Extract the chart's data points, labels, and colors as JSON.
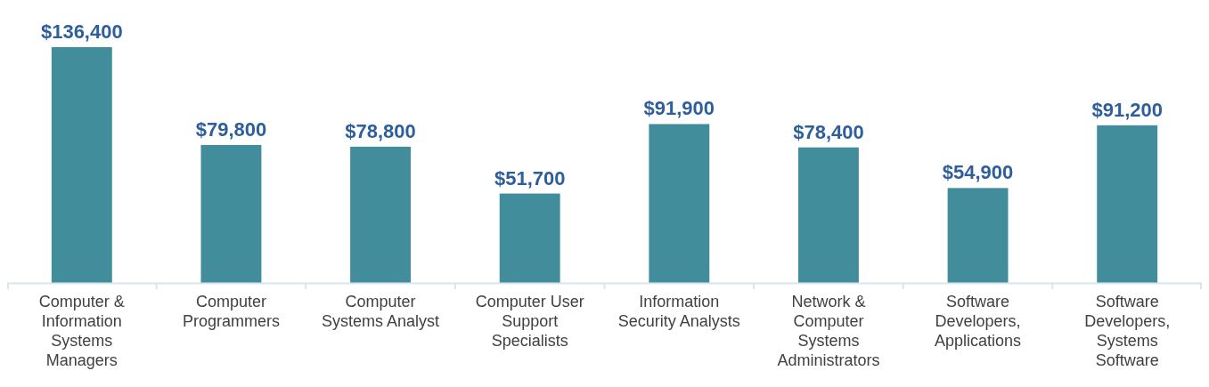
{
  "chart_data": {
    "type": "bar",
    "categories": [
      "Computer & Information Systems Managers",
      "Computer Programmers",
      "Computer Systems Analyst",
      "Computer User Support Specialists",
      "Information Security Analysts",
      "Network & Computer Systems Administrators",
      "Software Developers, Applications",
      "Software Developers, Systems Software"
    ],
    "values": [
      136400,
      79800,
      78800,
      51700,
      91900,
      78400,
      54900,
      91200
    ],
    "value_labels": [
      "$136,400",
      "$79,800",
      "$78,800",
      "$51,700",
      "$91,900",
      "$78,400",
      "$54,900",
      "$91,200"
    ],
    "color": "#418d9c"
  }
}
